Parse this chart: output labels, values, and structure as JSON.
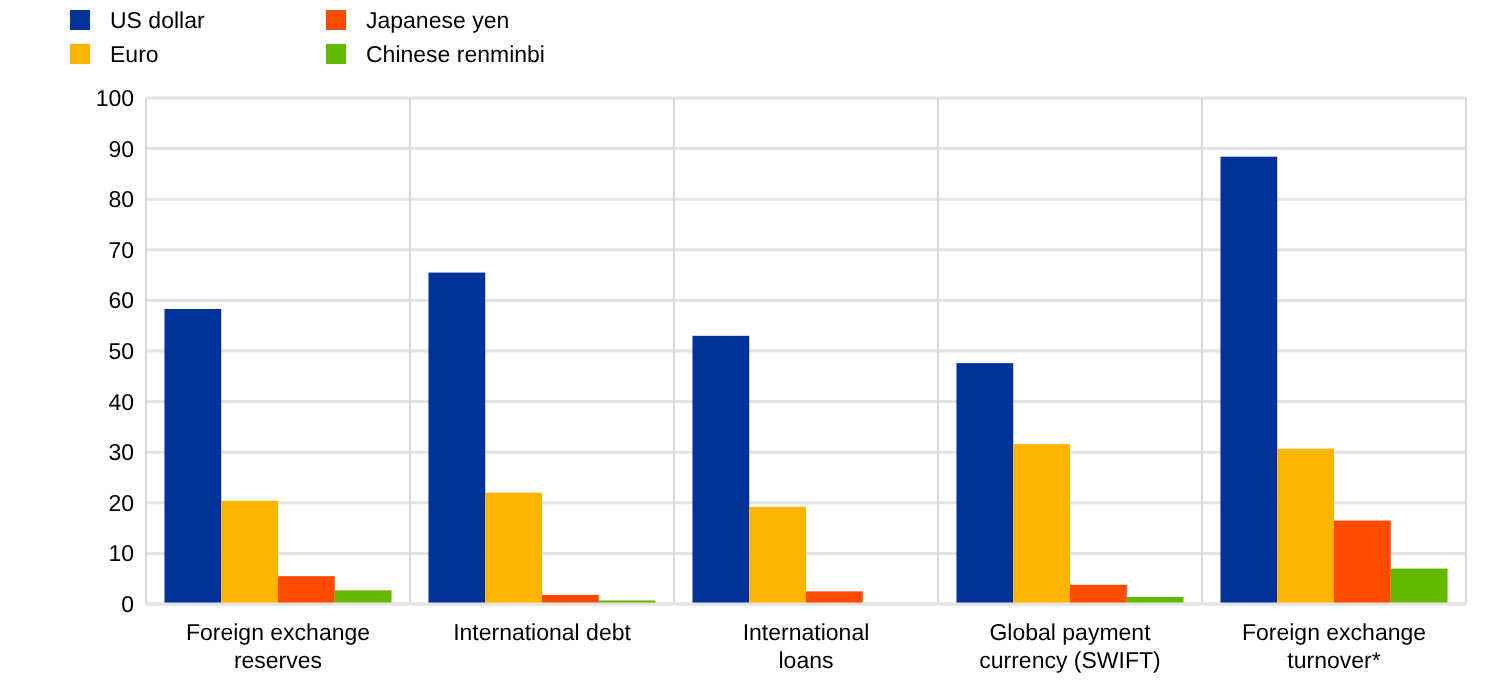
{
  "chart_data": {
    "type": "bar",
    "categories": [
      "Foreign exchange reserves",
      "International debt",
      "International loans",
      "Global payment currency (SWIFT)",
      "Foreign exchange turnover*"
    ],
    "series": [
      {
        "name": "US dollar",
        "color": "#003299",
        "values": [
          58.3,
          65.5,
          53,
          47.6,
          88.4
        ]
      },
      {
        "name": "Euro",
        "color": "#ffb400",
        "values": [
          20.4,
          22,
          19.2,
          31.6,
          30.7
        ]
      },
      {
        "name": "Japanese yen",
        "color": "#ff4b00",
        "values": [
          5.5,
          1.8,
          2.5,
          3.8,
          16.5
        ]
      },
      {
        "name": "Chinese renminbi",
        "color": "#65b800",
        "values": [
          2.7,
          0.7,
          null,
          1.4,
          7
        ]
      }
    ],
    "ylim": [
      0,
      100
    ],
    "yticks": [
      0,
      10,
      20,
      30,
      40,
      50,
      60,
      70,
      80,
      90,
      100
    ],
    "grid": true,
    "legend": "top left"
  }
}
